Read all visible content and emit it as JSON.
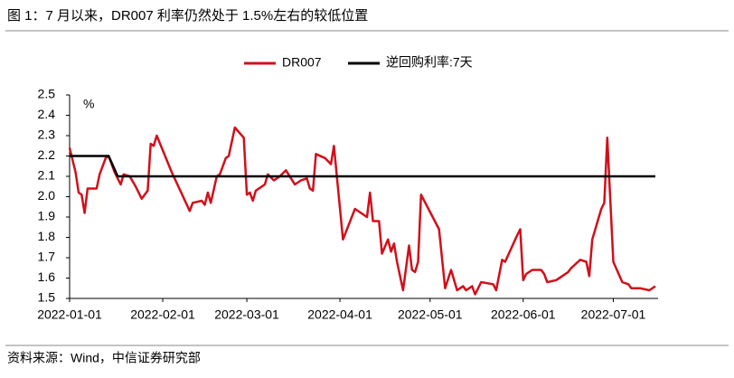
{
  "chart_data": {
    "type": "line",
    "title": "图 1：7 月以来，DR007 利率仍然处于 1.5%左右的较低位置",
    "source": "资料来源：Wind，中信证券研究部",
    "y_unit": "%",
    "xlim": [
      "2022-01-01",
      "2022-07-15"
    ],
    "xticks": [
      "2022-01-01",
      "2022-02-01",
      "2022-03-01",
      "2022-04-01",
      "2022-05-01",
      "2022-06-01",
      "2022-07-01"
    ],
    "ylim": [
      1.5,
      2.5
    ],
    "yticks": [
      1.5,
      1.6,
      1.7,
      1.8,
      1.9,
      {
        "value": 2,
        "label": "2.0"
      },
      2.1,
      2.2,
      2.3,
      2.4,
      2.5
    ],
    "grid": false,
    "legend": "top",
    "series": [
      {
        "name": "DR007",
        "color": "#d0101b",
        "x": [
          "2022-01-01",
          "2022-01-03",
          "2022-01-04",
          "2022-01-05",
          "2022-01-06",
          "2022-01-07",
          "2022-01-10",
          "2022-01-11",
          "2022-01-13",
          "2022-01-14",
          "2022-01-16",
          "2022-01-18",
          "2022-01-19",
          "2022-01-21",
          "2022-01-23",
          "2022-01-25",
          "2022-01-27",
          "2022-01-28",
          "2022-01-29",
          "2022-01-30",
          "2022-02-04",
          "2022-02-10",
          "2022-02-11",
          "2022-02-14",
          "2022-02-15",
          "2022-02-16",
          "2022-02-17",
          "2022-02-19",
          "2022-02-20",
          "2022-02-22",
          "2022-02-23",
          "2022-02-25",
          "2022-02-28",
          "2022-03-01",
          "2022-03-02",
          "2022-03-03",
          "2022-03-04",
          "2022-03-07",
          "2022-03-08",
          "2022-03-10",
          "2022-03-12",
          "2022-03-14",
          "2022-03-17",
          "2022-03-19",
          "2022-03-21",
          "2022-03-22",
          "2022-03-23",
          "2022-03-24",
          "2022-03-27",
          "2022-03-29",
          "2022-03-30",
          "2022-04-02",
          "2022-04-06",
          "2022-04-10",
          "2022-04-11",
          "2022-04-12",
          "2022-04-14",
          "2022-04-15",
          "2022-04-17",
          "2022-04-18",
          "2022-04-19",
          "2022-04-20",
          "2022-04-22",
          "2022-04-24",
          "2022-04-25",
          "2022-04-26",
          "2022-04-27",
          "2022-04-28",
          "2022-05-04",
          "2022-05-06",
          "2022-05-08",
          "2022-05-10",
          "2022-05-12",
          "2022-05-13",
          "2022-05-15",
          "2022-05-16",
          "2022-05-18",
          "2022-05-22",
          "2022-05-23",
          "2022-05-25",
          "2022-05-26",
          "2022-05-30",
          "2022-05-31",
          "2022-06-01",
          "2022-06-02",
          "2022-06-04",
          "2022-06-07",
          "2022-06-08",
          "2022-06-09",
          "2022-06-12",
          "2022-06-14",
          "2022-06-16",
          "2022-06-17",
          "2022-06-20",
          "2022-06-22",
          "2022-06-23",
          "2022-06-24",
          "2022-06-27",
          "2022-06-28",
          "2022-06-29",
          "2022-07-01",
          "2022-07-04",
          "2022-07-06",
          "2022-07-07",
          "2022-07-10",
          "2022-07-13",
          "2022-07-15"
        ],
        "values": [
          2.24,
          2.12,
          2.02,
          2.01,
          1.92,
          2.04,
          2.04,
          2.11,
          2.19,
          2.2,
          2.12,
          2.06,
          2.11,
          2.1,
          2.05,
          1.99,
          2.03,
          2.26,
          2.25,
          2.3,
          2.12,
          1.93,
          1.97,
          1.98,
          1.96,
          2.02,
          1.97,
          2.1,
          2.11,
          2.19,
          2.2,
          2.34,
          2.29,
          2.01,
          2.02,
          1.98,
          2.03,
          2.06,
          2.11,
          2.08,
          2.1,
          2.13,
          2.06,
          2.08,
          2.09,
          2.04,
          2.03,
          2.21,
          2.19,
          2.16,
          2.25,
          1.79,
          1.94,
          1.9,
          2.02,
          1.88,
          1.88,
          1.72,
          1.79,
          1.73,
          1.77,
          1.68,
          1.54,
          1.76,
          1.64,
          1.63,
          1.68,
          2.01,
          1.84,
          1.55,
          1.64,
          1.54,
          1.56,
          1.54,
          1.56,
          1.52,
          1.58,
          1.57,
          1.54,
          1.69,
          1.68,
          1.81,
          1.84,
          1.59,
          1.62,
          1.64,
          1.64,
          1.62,
          1.58,
          1.59,
          1.61,
          1.63,
          1.65,
          1.69,
          1.68,
          1.61,
          1.79,
          1.94,
          1.97,
          2.29,
          1.68,
          1.58,
          1.57,
          1.55,
          1.55,
          1.54,
          1.56
        ]
      },
      {
        "name": "逆回购利率:7天",
        "color": "#000000",
        "x": [
          "2022-01-01",
          "2022-01-14",
          "2022-01-17",
          "2022-07-15"
        ],
        "values": [
          2.2,
          2.2,
          2.1,
          2.1
        ]
      }
    ]
  }
}
